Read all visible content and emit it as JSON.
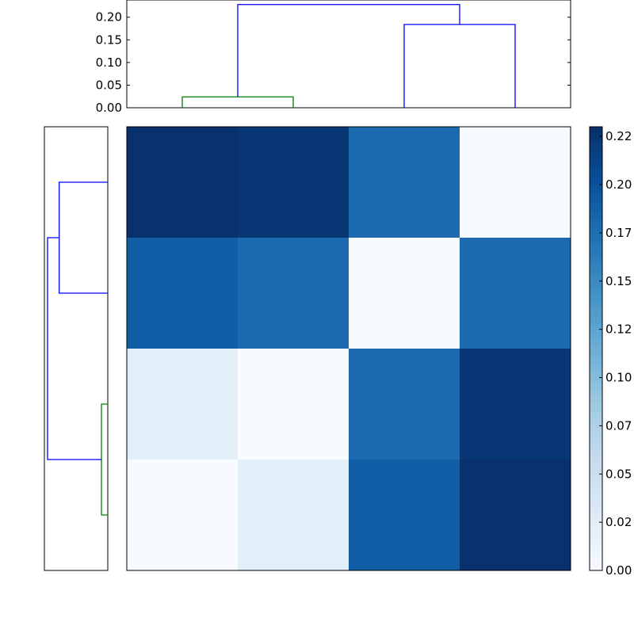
{
  "chart_data": [
    {
      "type": "heatmap",
      "colormap": "Blues",
      "values": [
        [
          0.229,
          0.225,
          0.178,
          0.0
        ],
        [
          0.19,
          0.178,
          0.0,
          0.178
        ],
        [
          0.024,
          0.0,
          0.178,
          0.225
        ],
        [
          0.0,
          0.024,
          0.19,
          0.229
        ]
      ],
      "colorbar": {
        "range": [
          0.0,
          0.23
        ],
        "ticks": [
          0.0,
          0.025,
          0.05,
          0.075,
          0.1,
          0.125,
          0.15,
          0.175,
          0.2,
          0.225
        ],
        "tick_labels": [
          "0.00",
          "0.02",
          "0.05",
          "0.07",
          "0.10",
          "0.12",
          "0.15",
          "0.17",
          "0.20",
          "0.22"
        ]
      }
    },
    {
      "type": "dendrogram",
      "position": "top",
      "ylim": [
        0.0,
        0.238
      ],
      "ticks": [
        0.0,
        0.05,
        0.1,
        0.15,
        0.2
      ],
      "tick_labels": [
        "0.00",
        "0.05",
        "0.10",
        "0.15",
        "0.20"
      ],
      "links": [
        {
          "leaves": [
            0,
            1
          ],
          "height": 0.024,
          "color": "#008000"
        },
        {
          "leaves": [
            2,
            3
          ],
          "height": 0.184,
          "color": "#0000ff"
        },
        {
          "leaves": [
            "0-1",
            "2-3"
          ],
          "height": 0.228,
          "color": "#0000ff"
        }
      ]
    },
    {
      "type": "dendrogram",
      "position": "left",
      "xlim": [
        0.0,
        0.24
      ],
      "links": [
        {
          "leaves": [
            0,
            1
          ],
          "height": 0.184,
          "color": "#0000ff"
        },
        {
          "leaves": [
            2,
            3
          ],
          "height": 0.024,
          "color": "#008000"
        },
        {
          "leaves": [
            "0-1",
            "2-3"
          ],
          "height": 0.228,
          "color": "#0000ff"
        }
      ]
    }
  ]
}
